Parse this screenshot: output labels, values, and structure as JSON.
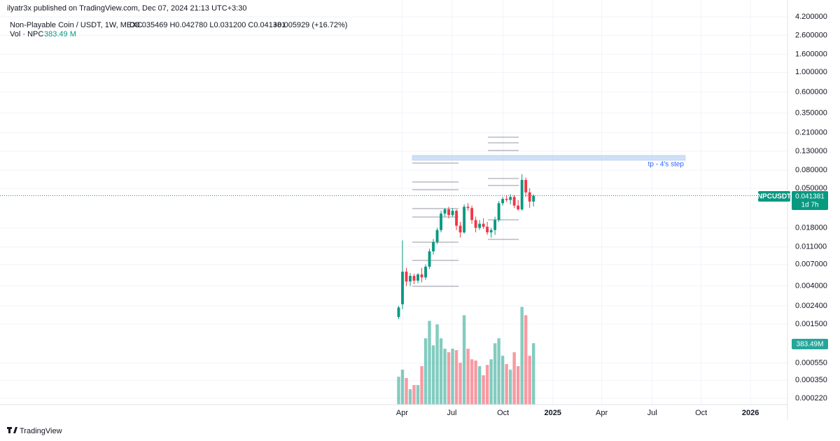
{
  "header": {
    "publisher": "ilyatr3x published on TradingView.com, Dec 07, 2024 21:13 UTC+3:30"
  },
  "legend": {
    "symbol": "Non-Playable Coin / USDT, 1W, MEXC",
    "ohlc": "O0.035469 H0.042780 L0.031200 C0.041381",
    "change": "+0.005929 (+16.72%)",
    "volume_name": "Vol · NPC",
    "volume_value": "383.49 M"
  },
  "price_tag": {
    "symbol": "NPCUSDT",
    "value": "0.041381",
    "countdown": "1d 7h"
  },
  "annotation": "tp - 4's step",
  "footer": "TradingView",
  "chart_data": {
    "type": "candlestick",
    "log_scale": true,
    "grid": true,
    "up_color": "#089981",
    "down_color": "#f23645",
    "open": [
      0.0018,
      0.0025,
      0.0058,
      0.0045,
      0.0052,
      0.0046,
      0.0054,
      0.005,
      0.0066,
      0.0098,
      0.0125,
      0.017,
      0.026,
      0.029,
      0.025,
      0.028,
      0.019,
      0.016,
      0.031,
      0.03,
      0.022,
      0.018,
      0.02,
      0.0185,
      0.016,
      0.017,
      0.022,
      0.034,
      0.038,
      0.037,
      0.04,
      0.032,
      0.029,
      0.062,
      0.045,
      0.035469
    ],
    "high": [
      0.0024,
      0.013,
      0.0064,
      0.0056,
      0.0055,
      0.0056,
      0.0064,
      0.007,
      0.0105,
      0.0135,
      0.018,
      0.028,
      0.03,
      0.031,
      0.03,
      0.029,
      0.021,
      0.033,
      0.034,
      0.032,
      0.024,
      0.022,
      0.023,
      0.021,
      0.018,
      0.024,
      0.036,
      0.04,
      0.042,
      0.043,
      0.042,
      0.037,
      0.072,
      0.066,
      0.05,
      0.04278
    ],
    "low": [
      0.0017,
      0.0022,
      0.004,
      0.004,
      0.0042,
      0.0043,
      0.0044,
      0.0047,
      0.0062,
      0.009,
      0.0118,
      0.016,
      0.024,
      0.023,
      0.024,
      0.017,
      0.014,
      0.0155,
      0.028,
      0.02,
      0.016,
      0.017,
      0.0175,
      0.015,
      0.014,
      0.015,
      0.021,
      0.032,
      0.035,
      0.033,
      0.03,
      0.028,
      0.028,
      0.04,
      0.03,
      0.0312
    ],
    "close": [
      0.0023,
      0.0058,
      0.0045,
      0.0052,
      0.0046,
      0.0054,
      0.005,
      0.0066,
      0.0098,
      0.0125,
      0.017,
      0.026,
      0.029,
      0.025,
      0.028,
      0.019,
      0.016,
      0.031,
      0.03,
      0.022,
      0.018,
      0.02,
      0.0185,
      0.016,
      0.017,
      0.022,
      0.034,
      0.038,
      0.037,
      0.04,
      0.032,
      0.029,
      0.062,
      0.045,
      0.0355,
      0.041381
    ],
    "volume": {
      "values": [
        174,
        218,
        166,
        96,
        122,
        122,
        240,
        414,
        523,
        370,
        501,
        414,
        349,
        327,
        349,
        340,
        261,
        558,
        349,
        283,
        275,
        240,
        183,
        248,
        283,
        383,
        414,
        305,
        253,
        218,
        327,
        240,
        610,
        558,
        305,
        383.49
      ],
      "vlim": [
        0,
        660
      ],
      "tag": "383.49M"
    },
    "xlim": [
      -102,
      100
    ],
    "xticks": [
      {
        "value": 0.9,
        "label": "Apr"
      },
      {
        "value": 13.8,
        "label": "Jul"
      },
      {
        "value": 27.1,
        "label": "Oct"
      },
      {
        "value": 40,
        "label": "2025"
      },
      {
        "value": 52.7,
        "label": "Apr"
      },
      {
        "value": 65.8,
        "label": "Jul"
      },
      {
        "value": 78.5,
        "label": "Oct"
      },
      {
        "value": 91.3,
        "label": "2026"
      }
    ],
    "ylim": [
      0.000187,
      4.68
    ],
    "yticks": [
      {
        "value": 4.2,
        "label": "4.200000"
      },
      {
        "value": 2.6,
        "label": "2.600000"
      },
      {
        "value": 1.6,
        "label": "1.600000"
      },
      {
        "value": 1,
        "label": "1.000000"
      },
      {
        "value": 0.6,
        "label": "0.600000"
      },
      {
        "value": 0.35,
        "label": "0.350000"
      },
      {
        "value": 0.21,
        "label": "0.210000"
      },
      {
        "value": 0.13,
        "label": "0.130000"
      },
      {
        "value": 0.08,
        "label": "0.080000"
      },
      {
        "value": 0.05,
        "label": "0.050000"
      },
      {
        "value": 0.018,
        "label": "0.018000"
      },
      {
        "value": 0.011,
        "label": "0.011000"
      },
      {
        "value": 0.007,
        "label": "0.007000"
      },
      {
        "value": 0.004,
        "label": "0.004000"
      },
      {
        "value": 0.0024,
        "label": "0.002400"
      },
      {
        "value": 0.0015,
        "label": "0.001500"
      },
      {
        "value": 0.00055,
        "label": "0.000550"
      },
      {
        "value": 0.00035,
        "label": "0.000350"
      },
      {
        "value": 0.00022,
        "label": "0.000220"
      }
    ]
  }
}
